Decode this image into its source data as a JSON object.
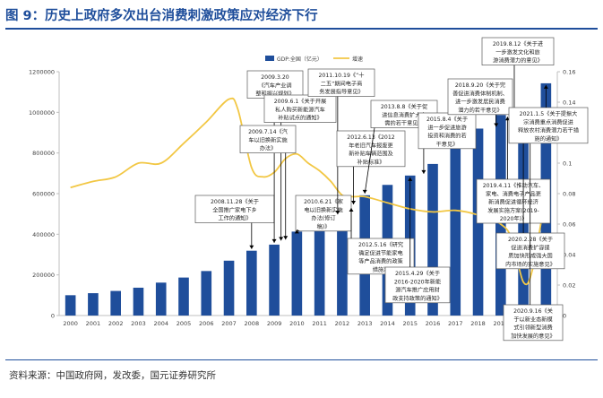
{
  "figure": {
    "title": "图 9：历史上政府多次出台消费刺激政策应对经济下行",
    "source": "资料来源：中国政府网，发改委，国元证券研究所"
  },
  "colors": {
    "bar": "#1f4e9b",
    "line": "#f2c744",
    "title": "#1f4e9b",
    "annotation_border": "#5a5a5a"
  },
  "chart_data": {
    "type": "bar",
    "categories": [
      "2000",
      "2001",
      "2002",
      "2003",
      "2004",
      "2005",
      "2006",
      "2007",
      "2008",
      "2009",
      "2010",
      "2011",
      "2012",
      "2013",
      "2014",
      "2015",
      "2016",
      "2017",
      "2018",
      "2019",
      "2020",
      "2021"
    ],
    "series": [
      {
        "name": "GDP:全国（亿元）",
        "type": "bar",
        "axis": "left",
        "values": [
          100000,
          110000,
          121000,
          137000,
          162000,
          187000,
          219000,
          270000,
          319000,
          349000,
          413000,
          489000,
          538000,
          592000,
          643000,
          689000,
          746000,
          832000,
          920000,
          987000,
          1015000,
          1143000
        ]
      },
      {
        "name": "增速",
        "type": "line",
        "axis": "right",
        "x": [
          2000,
          2001,
          2002,
          2003,
          2004,
          2005,
          2006,
          2007,
          2007.4,
          2008,
          2008.5,
          2009,
          2009.5,
          2010,
          2010.5,
          2011,
          2011.5,
          2012,
          2012.5,
          2013,
          2014,
          2015,
          2016,
          2017,
          2018,
          2019,
          2019.5,
          2020,
          2020.4,
          2021
        ],
        "values": [
          0.084,
          0.088,
          0.091,
          0.1,
          0.1,
          0.113,
          0.127,
          0.142,
          0.135,
          0.097,
          0.091,
          0.094,
          0.103,
          0.106,
          0.1,
          0.095,
          0.088,
          0.079,
          0.078,
          0.078,
          0.074,
          0.07,
          0.068,
          0.069,
          0.066,
          0.06,
          0.05,
          0.022,
          0.03,
          0.081
        ]
      }
    ],
    "left_axis": {
      "ylim": [
        0,
        1200000
      ],
      "ticks": [
        "0",
        "200000",
        "400000",
        "600000",
        "800000",
        "1000000",
        "1200000"
      ]
    },
    "right_axis": {
      "ylim": [
        0,
        0.16
      ],
      "ticks": [
        "0",
        "0.02",
        "0.04",
        "0.06",
        "0.08",
        "0.1",
        "0.12",
        "0.14",
        "0.16"
      ]
    },
    "legend": {
      "position": "top-right",
      "bar_label": "GDP:全国（亿元）",
      "line_label": "增速"
    },
    "grid": false,
    "annotations": [
      {
        "lines": [
          "2008.11.28《关于",
          "全国推广家电下乡",
          "工作的通知》"
        ],
        "target": {
          "x": 2008,
          "y": 319000
        }
      },
      {
        "lines": [
          "2009.3.20",
          "《汽车产业调",
          "整和振兴规划》"
        ],
        "target": {
          "x": 2009,
          "y": 349000
        }
      },
      {
        "lines": [
          "2009.6.1《关于开展",
          "私人购买新能源汽车",
          "补贴试点的通知》"
        ],
        "target": {
          "x": 2009.3,
          "y": 360000
        }
      },
      {
        "lines": [
          "2009.7.14《汽",
          "车以旧换新实施",
          "办法》"
        ],
        "target": {
          "x": 2009.5,
          "y": 365000
        }
      },
      {
        "lines": [
          "2010.6.21《家",
          "电以旧换新实施",
          "办法(修订",
          "稿)》"
        ],
        "target": {
          "x": 2010,
          "y": 413000
        }
      },
      {
        "lines": [
          "2011.10.19《“十",
          "二五”期间电子商",
          "务发展指导意见》"
        ],
        "target": {
          "x": 2011.8,
          "y": 489000
        }
      },
      {
        "lines": [
          "2012.5.16《研究",
          "确定促进节能家电",
          "等产品消费的政策",
          "措施》"
        ],
        "target": {
          "x": 2012.4,
          "y": 538000
        }
      },
      {
        "lines": [
          "2012.6.13《2012",
          "年老旧汽车报废更",
          "新补贴车辆范围及",
          "补贴标准》"
        ],
        "target": {
          "x": 2012.5,
          "y": 538000
        }
      },
      {
        "lines": [
          "2013.8.8《关于促",
          "进信息消费扩大内",
          "需的若干意见》"
        ],
        "target": {
          "x": 2013,
          "y": 592000
        }
      },
      {
        "lines": [
          "2015.4.29《关于",
          "2016-2020年新能",
          "源汽车推广应用财",
          "政支持政策的通知》"
        ],
        "target": {
          "x": 2015,
          "y": 689000
        }
      },
      {
        "lines": [
          "2015.8.4《关于",
          "进一步促进旅游",
          "投资和消费的若",
          "干意见》"
        ],
        "target": {
          "x": 2015.6,
          "y": 689000
        }
      },
      {
        "lines": [
          "2018.9.20《关于完",
          "善促进消费体制机制、",
          "进一步激发居民消费",
          "潜力的若干意见》"
        ],
        "target": {
          "x": 2018.8,
          "y": 920000
        }
      },
      {
        "lines": [
          "2019.4.11《推动汽车、",
          "家电、消费电子产品更",
          "新消费促进循环经济",
          "发展实施方案(2019-",
          "2020年)》"
        ],
        "target": {
          "x": 2019.3,
          "y": 987000
        }
      },
      {
        "lines": [
          "2019.8.12《关于进",
          "一步激发文化和旅",
          "游消费潜力的意见》"
        ],
        "target": {
          "x": 2019.6,
          "y": 987000
        }
      },
      {
        "lines": [
          "2020.2.28《关于",
          "促进消费扩容提",
          "质加快形成强大国",
          "内市场的实施意见》"
        ],
        "target": {
          "x": 2020,
          "y": 1015000
        }
      },
      {
        "lines": [
          "2020.9.16《关",
          "于以新业态新模",
          "式引领新型消费",
          "加快发展的意见》"
        ],
        "target": {
          "x": 2020.3,
          "y": 1015000
        }
      },
      {
        "lines": [
          "2021.1.5《关于提振大",
          "宗消费重点消费促进",
          "释放农村消费潜力若干措",
          "施的通知》"
        ],
        "target": {
          "x": 2021,
          "y": 1143000
        }
      }
    ]
  }
}
